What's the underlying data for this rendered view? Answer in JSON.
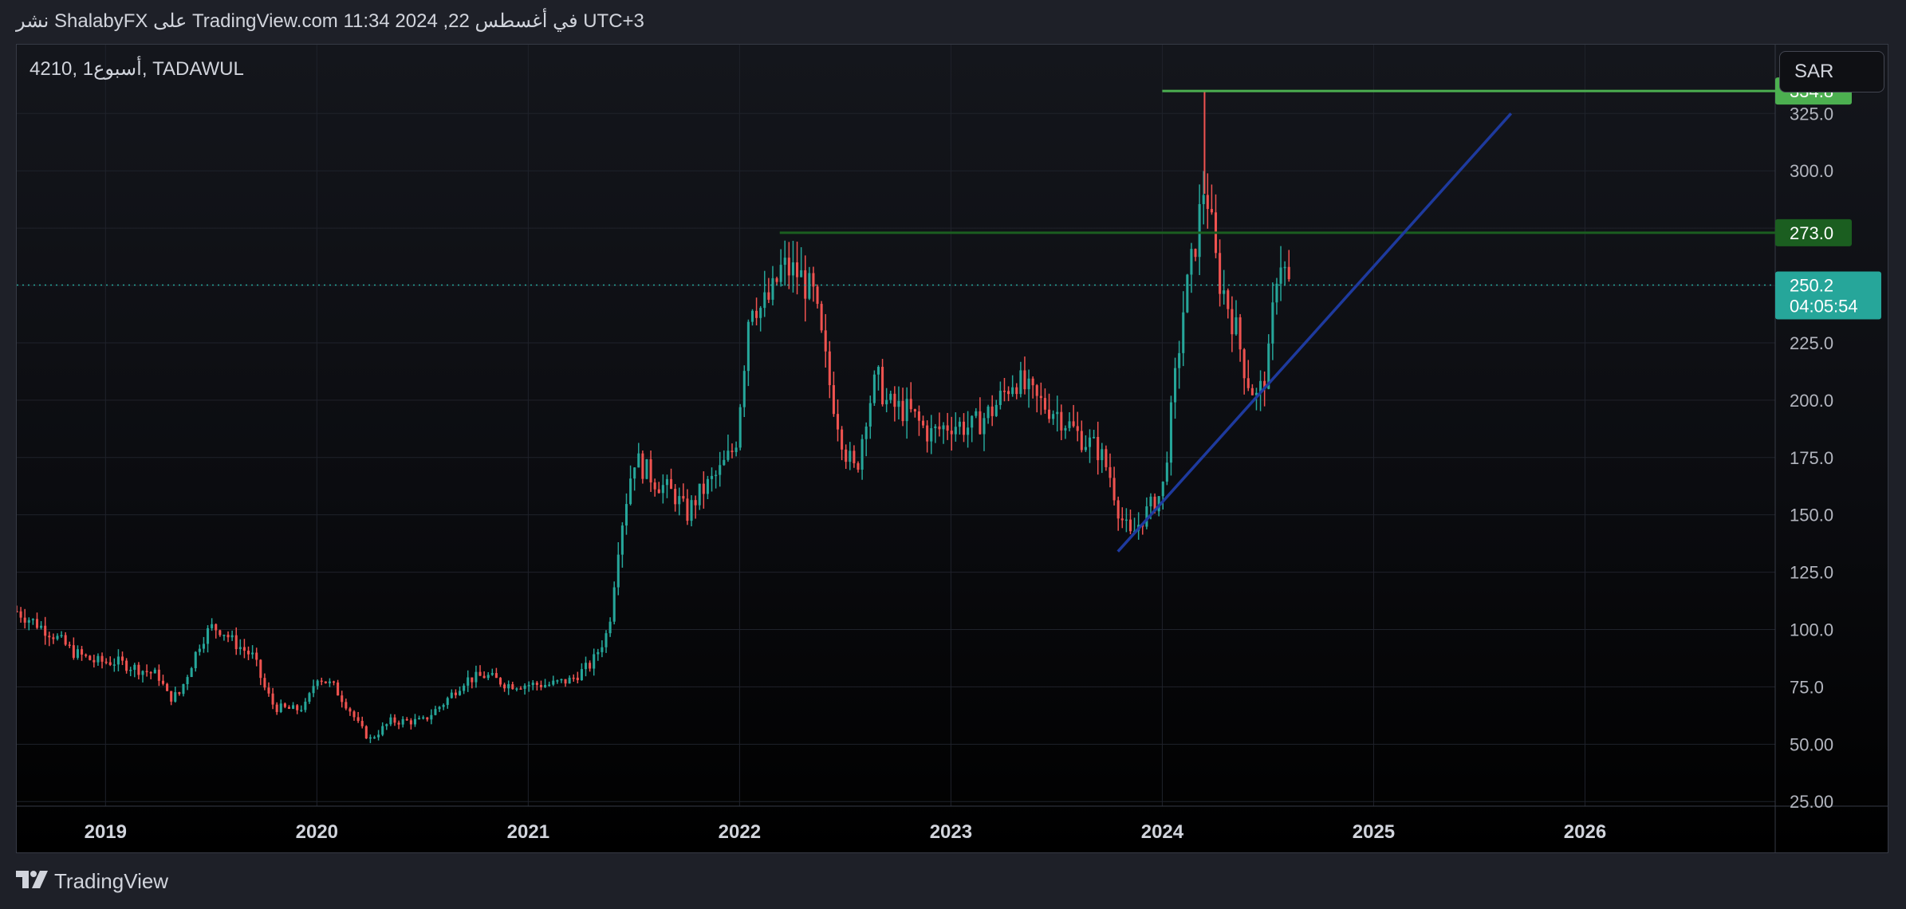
{
  "header": {
    "publish_line": "نشر ShalabyFX على TradingView.com 11:34 2024 ,22 في أغسطس UTC+3"
  },
  "chart_header": {
    "symbol": "4210, 1أسبوع, TADAWUL"
  },
  "currency": "SAR",
  "footer": {
    "brand": "TradingView"
  },
  "colors": {
    "up": "#26a69a",
    "down": "#ef5350",
    "resistance_1": "#4caf50",
    "resistance_2": "#1b5e20",
    "trendline": "#1e3a9e",
    "last_price_bg": "#26a69a"
  },
  "chart_data": {
    "type": "candlestick",
    "title": "",
    "timeframe": "1W",
    "y_ticks": [
      "325.0",
      "300.0",
      "275.0",
      "250.0",
      "225.0",
      "200.0",
      "175.0",
      "150.0",
      "125.0",
      "100.0",
      "75.0",
      "50.00",
      "25.00"
    ],
    "x_ticks": [
      "2019",
      "2020",
      "2021",
      "2022",
      "2023",
      "2024",
      "2025",
      "2026"
    ],
    "ylim": [
      23,
      355
    ],
    "xlim": [
      2018.58,
      2026.9
    ],
    "price_path": [
      [
        2018.58,
        108
      ],
      [
        2018.65,
        104
      ],
      [
        2018.75,
        98
      ],
      [
        2018.85,
        90
      ],
      [
        2018.95,
        86
      ],
      [
        2019.05,
        86
      ],
      [
        2019.15,
        83
      ],
      [
        2019.25,
        80
      ],
      [
        2019.3,
        70
      ],
      [
        2019.35,
        72
      ],
      [
        2019.45,
        95
      ],
      [
        2019.5,
        101
      ],
      [
        2019.55,
        100
      ],
      [
        2019.6,
        95
      ],
      [
        2019.7,
        88
      ],
      [
        2019.75,
        75
      ],
      [
        2019.8,
        66
      ],
      [
        2019.9,
        65
      ],
      [
        2019.95,
        67
      ],
      [
        2020.0,
        80
      ],
      [
        2020.08,
        75
      ],
      [
        2020.15,
        66
      ],
      [
        2020.2,
        58
      ],
      [
        2020.25,
        52
      ],
      [
        2020.35,
        60
      ],
      [
        2020.5,
        60
      ],
      [
        2020.6,
        68
      ],
      [
        2020.7,
        78
      ],
      [
        2020.8,
        80
      ],
      [
        2020.9,
        76
      ],
      [
        2021.0,
        76
      ],
      [
        2021.1,
        76
      ],
      [
        2021.2,
        78
      ],
      [
        2021.3,
        85
      ],
      [
        2021.38,
        100
      ],
      [
        2021.43,
        140
      ],
      [
        2021.5,
        175
      ],
      [
        2021.6,
        165
      ],
      [
        2021.7,
        158
      ],
      [
        2021.75,
        150
      ],
      [
        2021.8,
        158
      ],
      [
        2021.9,
        168
      ],
      [
        2021.98,
        180
      ],
      [
        2022.02,
        215
      ],
      [
        2022.05,
        245
      ],
      [
        2022.1,
        240
      ],
      [
        2022.15,
        245
      ],
      [
        2022.2,
        258
      ],
      [
        2022.28,
        255
      ],
      [
        2022.35,
        245
      ],
      [
        2022.43,
        205
      ],
      [
        2022.5,
        178
      ],
      [
        2022.55,
        168
      ],
      [
        2022.6,
        195
      ],
      [
        2022.65,
        210
      ],
      [
        2022.7,
        198
      ],
      [
        2022.8,
        195
      ],
      [
        2022.9,
        185
      ],
      [
        2023.0,
        190
      ],
      [
        2023.1,
        188
      ],
      [
        2023.2,
        196
      ],
      [
        2023.3,
        210
      ],
      [
        2023.4,
        200
      ],
      [
        2023.5,
        195
      ],
      [
        2023.6,
        185
      ],
      [
        2023.7,
        178
      ],
      [
        2023.75,
        168
      ],
      [
        2023.8,
        150
      ],
      [
        2023.85,
        140
      ],
      [
        2023.9,
        148
      ],
      [
        2024.0,
        160
      ],
      [
        2024.05,
        200
      ],
      [
        2024.1,
        240
      ],
      [
        2024.15,
        265
      ],
      [
        2024.2,
        295
      ],
      [
        2024.22,
        285
      ],
      [
        2024.26,
        255
      ],
      [
        2024.3,
        245
      ],
      [
        2024.35,
        230
      ],
      [
        2024.4,
        210
      ],
      [
        2024.45,
        200
      ],
      [
        2024.5,
        215
      ],
      [
        2024.55,
        265
      ],
      [
        2024.6,
        250
      ]
    ],
    "horizontal_lines": [
      {
        "value": 334.8,
        "label": "334.8",
        "x_start": 2024.0
      },
      {
        "value": 273.0,
        "label": "273.0",
        "x_start": 2022.19
      }
    ],
    "trendline": {
      "from": [
        2023.79,
        134
      ],
      "to": [
        2025.65,
        325
      ]
    },
    "last_price": {
      "value": 250.2,
      "label": "250.2",
      "countdown": "04:05:54"
    }
  }
}
